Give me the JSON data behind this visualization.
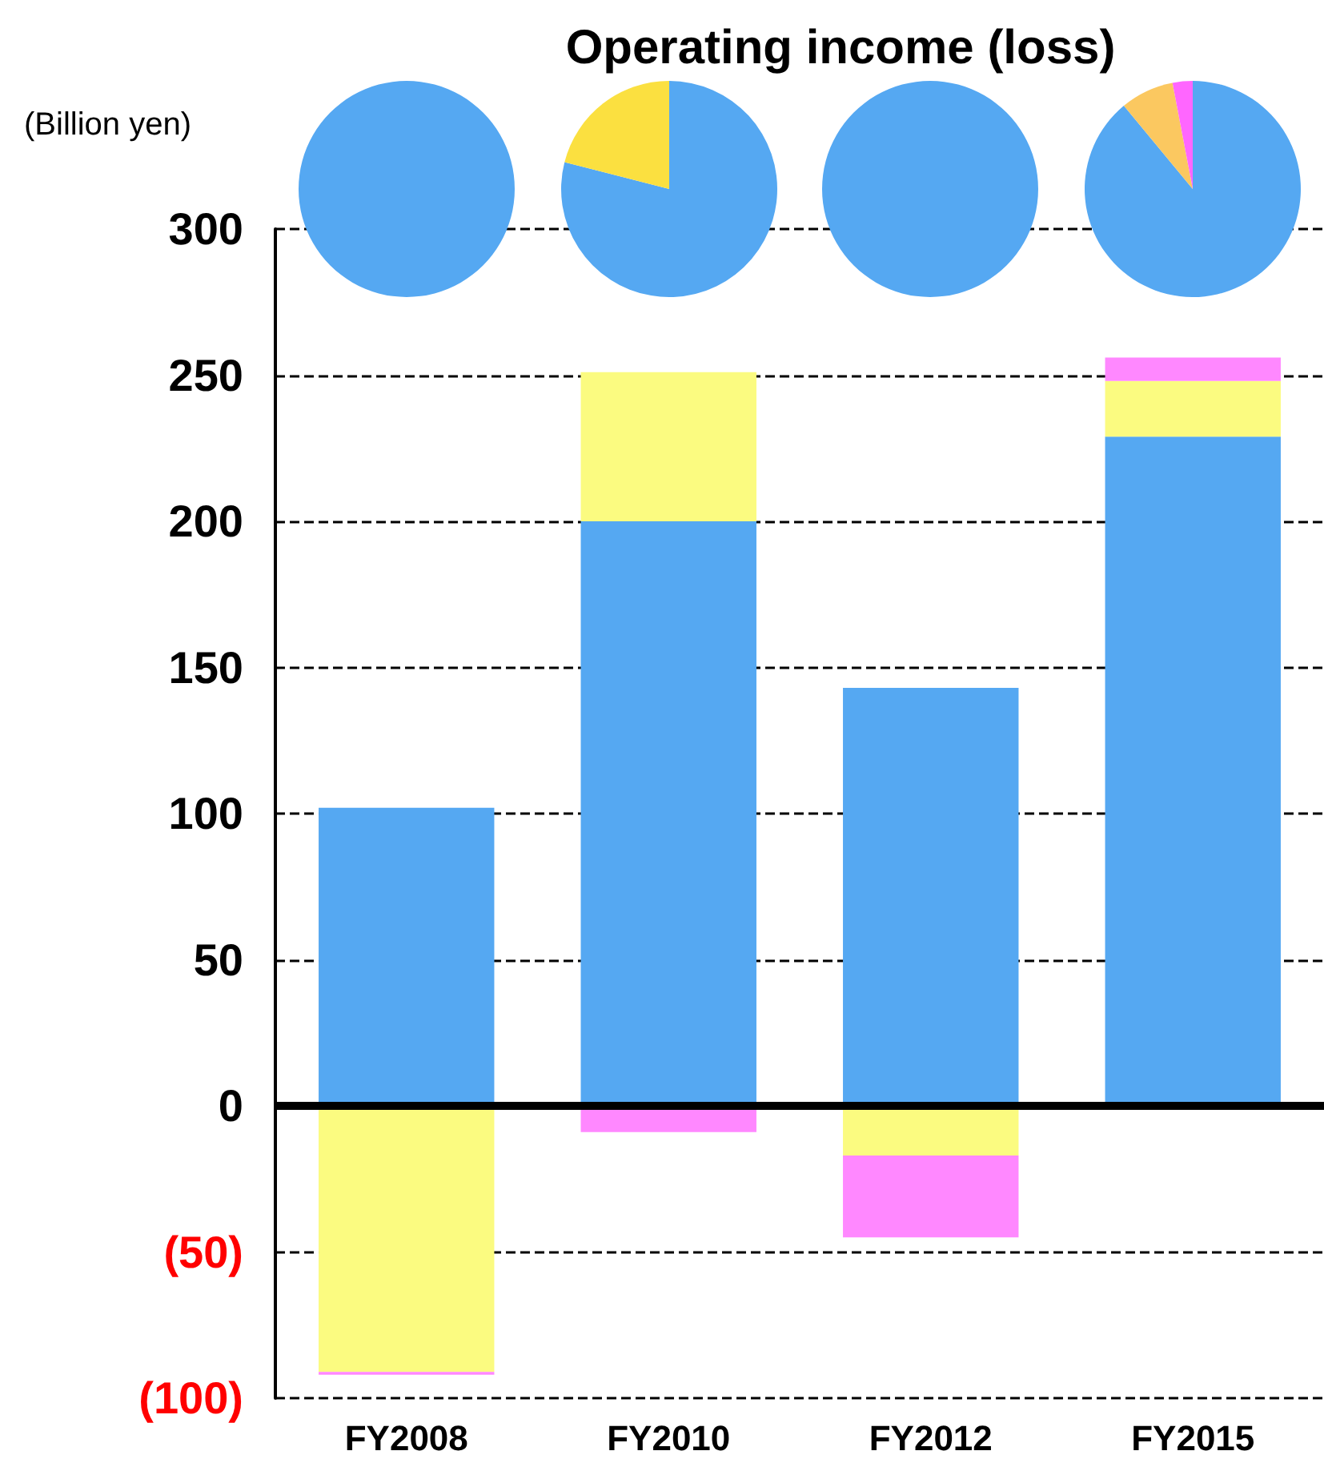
{
  "chart_data": [
    {
      "type": "bar",
      "title": "Operating income (loss)",
      "ylabel": "(Billion yen)",
      "stacked": true,
      "categories": [
        "FY2008",
        "FY2010",
        "FY2012",
        "FY2015"
      ],
      "series": [
        {
          "color": "#55a8f2",
          "values": [
            102,
            200,
            143,
            229
          ]
        },
        {
          "color": "#fbfb80",
          "values": [
            -91,
            51,
            -17,
            19
          ]
        },
        {
          "color": "#ff88ff",
          "values": [
            -1,
            -9,
            -28,
            8
          ]
        }
      ],
      "ylim": [
        -100,
        300
      ],
      "yticks": [
        {
          "value": -100,
          "label": "(100)"
        },
        {
          "value": -50,
          "label": "(50)"
        },
        0,
        50,
        100,
        150,
        200,
        250,
        300
      ],
      "grid": "y"
    },
    {
      "type": "pie",
      "categories": [
        null
      ],
      "values": [
        100
      ],
      "colors": [
        "#55a8f2"
      ]
    },
    {
      "type": "pie",
      "categories": [
        null,
        null
      ],
      "values": [
        79,
        21
      ],
      "colors": [
        "#55a8f2",
        "#fbe040"
      ]
    },
    {
      "type": "pie",
      "categories": [
        null
      ],
      "values": [
        100
      ],
      "colors": [
        "#55a8f2"
      ]
    },
    {
      "type": "pie",
      "categories": [
        null,
        null,
        null
      ],
      "values": [
        89,
        8,
        3
      ],
      "colors": [
        "#55a8f2",
        "#fbc860",
        "#ff66ff"
      ]
    }
  ]
}
